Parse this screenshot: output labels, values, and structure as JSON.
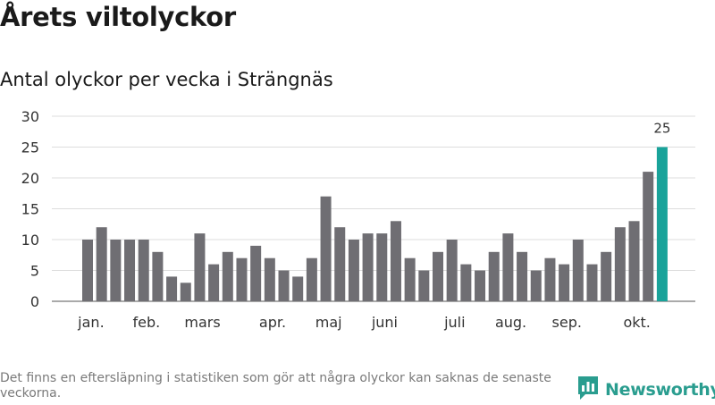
{
  "header": {
    "title": "Årets viltolyckor",
    "subtitle": "Antal olyckor per vecka i Strängnäs"
  },
  "footer": {
    "note": "Det finns en eftersläpning i statistiken som gör att några olyckor kan saknas de senaste veckorna.",
    "brand": "Newsworthy"
  },
  "colors": {
    "bar": "#6f6e73",
    "highlight": "#19a39a",
    "grid": "#dddddd",
    "brand": "#2a9d8f"
  },
  "chart_data": {
    "type": "bar",
    "title": "Antal olyckor per vecka i Strängnäs",
    "xlabel": "",
    "ylabel": "",
    "ylim": [
      0,
      30
    ],
    "yticks": [
      0,
      5,
      10,
      15,
      20,
      25,
      30
    ],
    "values": [
      10,
      12,
      10,
      10,
      10,
      8,
      4,
      3,
      11,
      6,
      8,
      7,
      9,
      7,
      5,
      4,
      7,
      17,
      12,
      10,
      11,
      11,
      13,
      7,
      5,
      8,
      10,
      6,
      5,
      8,
      11,
      8,
      5,
      7,
      6,
      10,
      6,
      8,
      12,
      13,
      21,
      25
    ],
    "highlight_index": 41,
    "highlight_label": "25",
    "month_labels": [
      {
        "label": "jan.",
        "bar_index": 0.25
      },
      {
        "label": "feb.",
        "bar_index": 4.2
      },
      {
        "label": "mars",
        "bar_index": 8.2
      },
      {
        "label": "apr.",
        "bar_index": 13.2
      },
      {
        "label": "maj",
        "bar_index": 17.2
      },
      {
        "label": "juni",
        "bar_index": 21.2
      },
      {
        "label": "juli",
        "bar_index": 26.2
      },
      {
        "label": "aug.",
        "bar_index": 30.2
      },
      {
        "label": "sep.",
        "bar_index": 34.2
      },
      {
        "label": "okt.",
        "bar_index": 39.2
      }
    ]
  }
}
